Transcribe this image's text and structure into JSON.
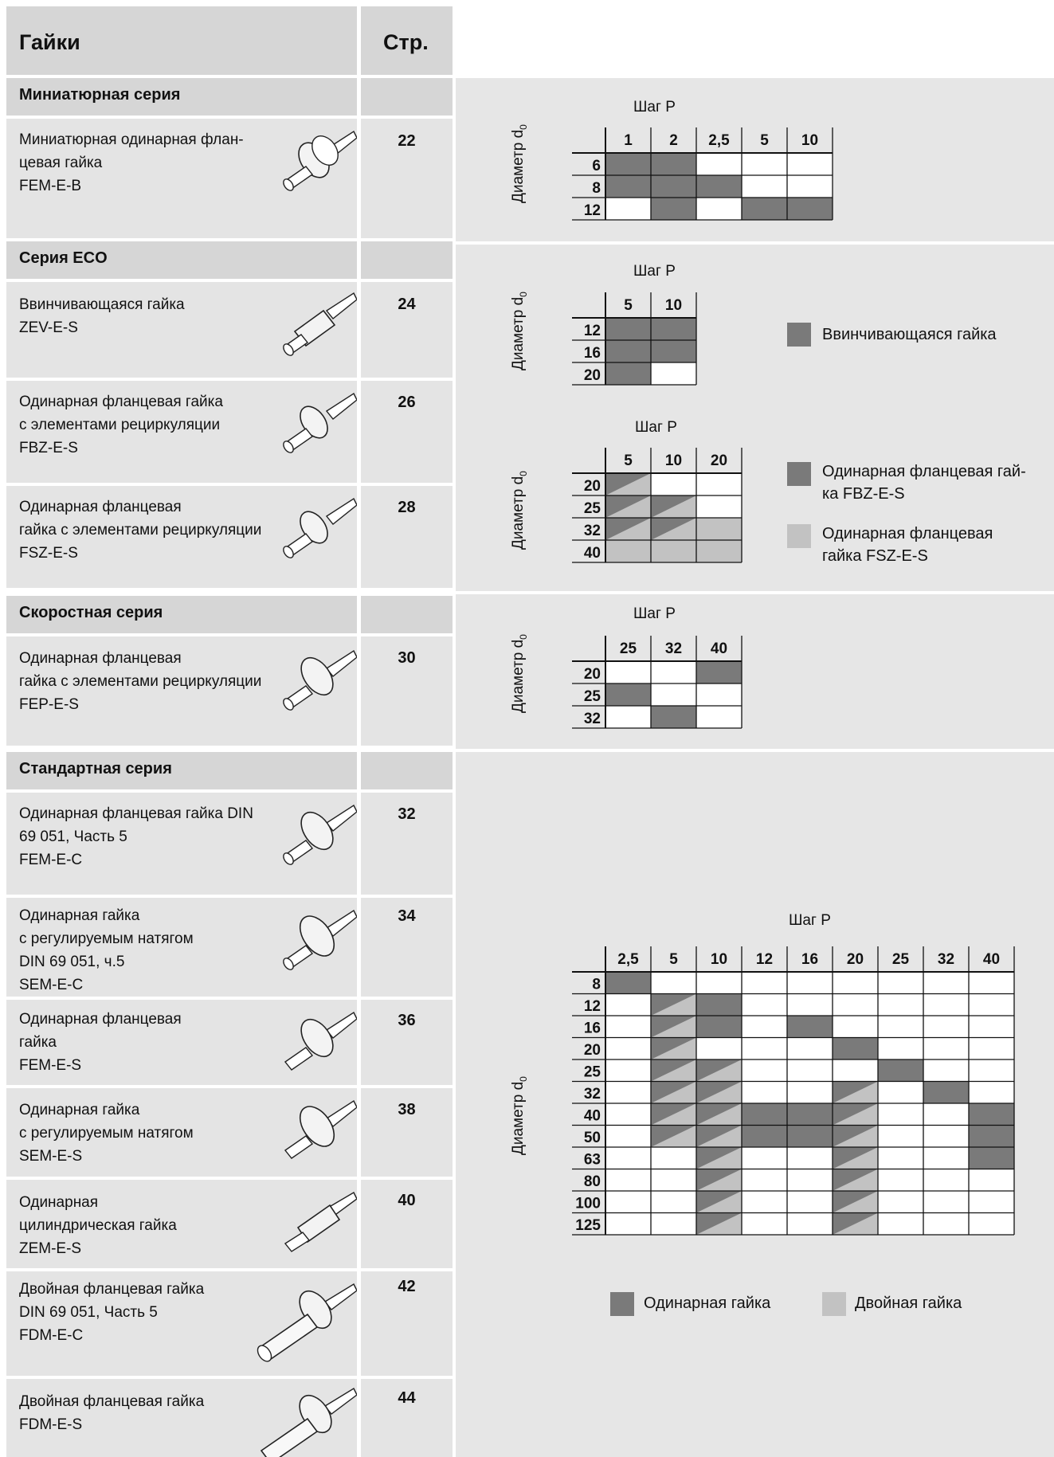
{
  "header": {
    "title": "Гайки",
    "page_col": "Стр."
  },
  "sections": [
    {
      "title": "Миниатюрная серия",
      "items": [
        {
          "lines": [
            "Миниатюрная одинарная флан-",
            "цевая гайка",
            "FEM-E-B"
          ],
          "page": "22"
        }
      ]
    },
    {
      "title": "Серия ECO",
      "items": [
        {
          "lines": [
            "Ввинчивающаяся гайка",
            "ZEV-E-S"
          ],
          "page": "24"
        },
        {
          "lines": [
            "Одинарная фланцевая гайка",
            "с элементами рециркуляции",
            "FBZ-E-S"
          ],
          "page": "26"
        },
        {
          "lines": [
            "Одинарная фланцевая",
            "гайка с элементами рециркуляции",
            "FSZ-E-S"
          ],
          "page": "28"
        }
      ]
    },
    {
      "title": "Скоростная серия",
      "items": [
        {
          "lines": [
            "Одинарная фланцевая",
            "гайка с элементами рециркуляции",
            "FEP-E-S"
          ],
          "page": "30"
        }
      ]
    },
    {
      "title": "Стандартная серия",
      "items": [
        {
          "lines": [
            "Одинарная фланцевая гайка DIN",
            "69 051, Часть 5",
            "FEM-E-C"
          ],
          "page": "32"
        },
        {
          "lines": [
            "Одинарная гайка",
            "с регулируемым натягом",
            "DIN 69 051, ч.5",
            "SEM-E-C"
          ],
          "page": "34"
        },
        {
          "lines": [
            "Одинарная фланцевая",
            "гайка",
            "FEM-E-S"
          ],
          "page": "36"
        },
        {
          "lines": [
            "Одинарная гайка",
            "с регулируемым натягом",
            "SEM-E-S"
          ],
          "page": "38"
        },
        {
          "lines": [
            "Одинарная",
            "цилиндрическая гайка",
            "ZEM-E-S"
          ],
          "page": "40"
        },
        {
          "lines": [
            "Двойная фланцевая гайка",
            "DIN 69 051, Часть 5",
            "FDM-E-C"
          ],
          "page": "42"
        },
        {
          "lines": [
            "Двойная фланцевая гайка",
            "FDM-E-S"
          ],
          "page": "44"
        }
      ]
    }
  ],
  "grid_labels": {
    "x": "Шаг P",
    "y": "Диаметр d",
    "y_sub": "0"
  },
  "grids": {
    "mini": {
      "cols": [
        "1",
        "2",
        "2,5",
        "5",
        "10"
      ],
      "rows": [
        "6",
        "8",
        "12"
      ],
      "cells": [
        [
          1,
          1,
          0,
          0,
          0
        ],
        [
          1,
          1,
          1,
          0,
          0
        ],
        [
          0,
          1,
          0,
          1,
          1
        ]
      ]
    },
    "eco_zev": {
      "cols": [
        "5",
        "10"
      ],
      "rows": [
        "12",
        "16",
        "20"
      ],
      "cells": [
        [
          1,
          1
        ],
        [
          1,
          1
        ],
        [
          1,
          0
        ]
      ]
    },
    "eco_f": {
      "cols": [
        "5",
        "10",
        "20"
      ],
      "rows": [
        "20",
        "25",
        "32",
        "40"
      ],
      "cells": [
        [
          3,
          0,
          0
        ],
        [
          3,
          3,
          0
        ],
        [
          3,
          3,
          2
        ],
        [
          2,
          2,
          2
        ]
      ]
    },
    "speed": {
      "cols": [
        "25",
        "32",
        "40"
      ],
      "rows": [
        "20",
        "25",
        "32"
      ],
      "cells": [
        [
          0,
          0,
          1
        ],
        [
          1,
          0,
          0
        ],
        [
          0,
          1,
          0
        ]
      ]
    },
    "std": {
      "cols": [
        "2,5",
        "5",
        "10",
        "12",
        "16",
        "20",
        "25",
        "32",
        "40"
      ],
      "rows": [
        "8",
        "12",
        "16",
        "20",
        "25",
        "32",
        "40",
        "50",
        "63",
        "80",
        "100",
        "125"
      ],
      "cells": [
        [
          1,
          0,
          0,
          0,
          0,
          0,
          0,
          0,
          0
        ],
        [
          0,
          3,
          1,
          0,
          0,
          0,
          0,
          0,
          0
        ],
        [
          0,
          3,
          1,
          0,
          1,
          0,
          0,
          0,
          0
        ],
        [
          0,
          3,
          0,
          0,
          0,
          1,
          0,
          0,
          0
        ],
        [
          0,
          3,
          3,
          0,
          0,
          0,
          1,
          0,
          0
        ],
        [
          0,
          3,
          3,
          0,
          0,
          3,
          0,
          1,
          0
        ],
        [
          0,
          3,
          3,
          1,
          1,
          3,
          0,
          0,
          1
        ],
        [
          0,
          3,
          3,
          1,
          1,
          3,
          0,
          0,
          1
        ],
        [
          0,
          0,
          3,
          0,
          0,
          3,
          0,
          0,
          1
        ],
        [
          0,
          0,
          3,
          0,
          0,
          3,
          0,
          0,
          0
        ],
        [
          0,
          0,
          3,
          0,
          0,
          3,
          0,
          0,
          0
        ],
        [
          0,
          0,
          3,
          0,
          0,
          3,
          0,
          0,
          0
        ]
      ]
    }
  },
  "legends": {
    "zev": "Ввинчивающаяся гайка",
    "fbz": [
      "Одинарная фланцевая гай-",
      "ка FBZ-E-S"
    ],
    "fsz": [
      "Одинарная фланцевая",
      "гайка FSZ-E-S"
    ],
    "single": "Одинарная гайка",
    "double": "Двойная гайка"
  },
  "colors": {
    "dark": "#7a7a7a",
    "light": "#c2c2c2",
    "header_bg": "#d6d6d6",
    "cell_bg": "#e4e4e4",
    "panel_bg": "#e6e6e6"
  }
}
